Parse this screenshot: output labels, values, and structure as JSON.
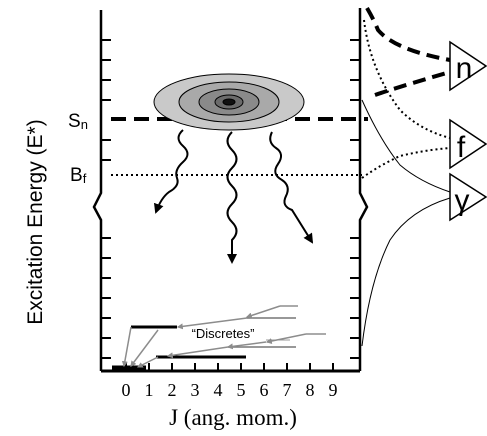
{
  "y_axis_label": "Excitation Energy (E*)",
  "x_axis_label": "J (ang. mom.)",
  "levels": {
    "sn": {
      "main": "S",
      "sub": "n"
    },
    "bf": {
      "main": "B",
      "sub": "f"
    }
  },
  "j_ticks": [
    "0",
    "1",
    "2",
    "3",
    "4",
    "5",
    "6",
    "7",
    "8",
    "9"
  ],
  "discretes_label": "“Discretes”",
  "decay_channels": [
    "n",
    "f",
    "γ"
  ],
  "colors": {
    "line": "#000000",
    "arrow_gray": "#8c8c8c",
    "ring1": "#c9c9c9",
    "ring2": "#a9a9a9",
    "ring3": "#8a8a8a",
    "ring4": "#6b6b6b"
  }
}
